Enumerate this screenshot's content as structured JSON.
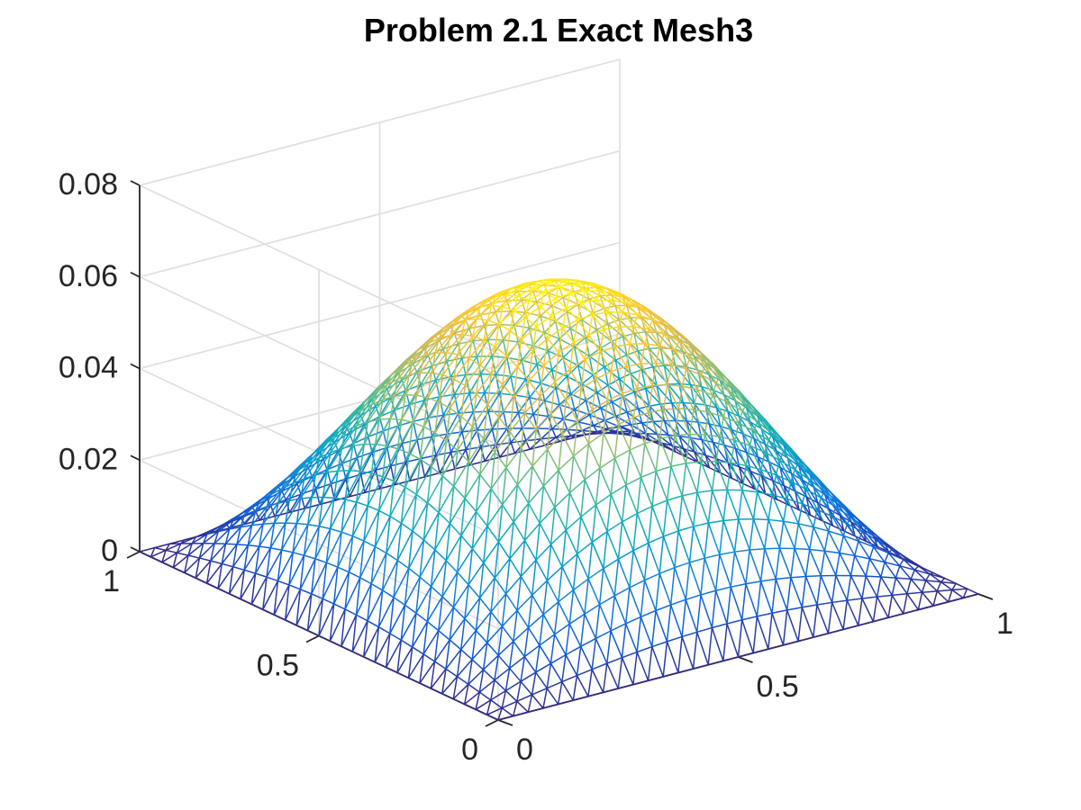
{
  "chart_data": {
    "type": "surface-mesh",
    "title": "Problem 2.1 Exact Mesh3",
    "xlabel": "",
    "ylabel": "",
    "zlabel": "",
    "function": "z = (1/16) * sin(pi*x) * sin(pi*y)",
    "x_range": [
      0,
      1
    ],
    "y_range": [
      0,
      1
    ],
    "zlim": [
      0,
      0.08
    ],
    "mesh": {
      "nx": 32,
      "ny": 32,
      "triangulated": true
    },
    "peak": {
      "x": 0.5,
      "y": 0.5,
      "z": 0.0625
    },
    "x_ticks": [
      "0",
      "0.5",
      "1"
    ],
    "y_ticks": [
      "0",
      "0.5",
      "1"
    ],
    "z_ticks": [
      "0",
      "0.02",
      "0.04",
      "0.06",
      "0.08"
    ],
    "colormap": "parula",
    "colormap_stops": [
      "#352a87",
      "#0f5cdd",
      "#1481d6",
      "#06a4ca",
      "#2eb7a4",
      "#87bf77",
      "#d1bb59",
      "#fec832",
      "#f9fb0e"
    ],
    "grid": true,
    "view": "3d-isometric"
  }
}
